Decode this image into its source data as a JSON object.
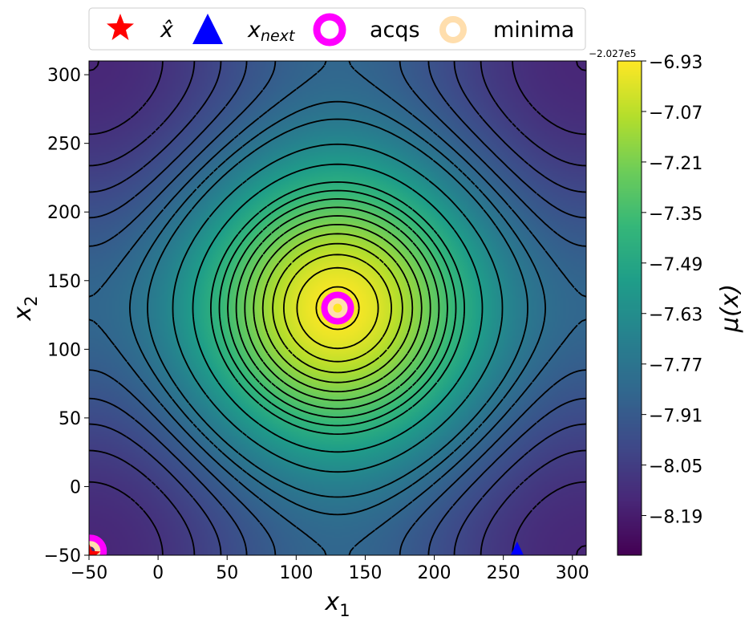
{
  "chart_data": {
    "type": "heatmap",
    "subtype": "filled-contour with dashed contour lines and colorbar",
    "colormap": "viridis",
    "x": {
      "label": "x",
      "label_subscript": "1",
      "lim": [
        -50,
        310
      ],
      "ticks": [
        -50,
        0,
        50,
        100,
        150,
        200,
        250,
        300
      ],
      "tick_labels": [
        "−50",
        "0",
        "50",
        "100",
        "150",
        "200",
        "250",
        "300"
      ]
    },
    "y": {
      "label": "x",
      "label_subscript": "2",
      "lim": [
        -50,
        310
      ],
      "ticks": [
        -50,
        0,
        50,
        100,
        150,
        200,
        250,
        300
      ],
      "tick_labels": [
        "−50",
        "0",
        "50",
        "100",
        "150",
        "200",
        "250",
        "300"
      ]
    },
    "surface": {
      "max_value": -6.93,
      "max_location": [
        130,
        130
      ],
      "min_value": -8.3,
      "min_locations": [
        [
          -50,
          -50
        ],
        [
          310,
          -50
        ],
        [
          -50,
          310
        ],
        [
          310,
          310
        ]
      ],
      "period": 360,
      "contour_levels": [
        -6.95,
        -7.0,
        -7.05,
        -7.1,
        -7.15,
        -7.2,
        -7.25,
        -7.3,
        -7.35,
        -7.4,
        -7.45,
        -7.55,
        -7.65,
        -7.75,
        -7.8,
        -7.85,
        -7.9,
        -7.95,
        -8.0,
        -8.05,
        -8.1,
        -8.15,
        -8.2,
        -8.25
      ],
      "contour_style": "dashed",
      "contour_color": "#000000"
    },
    "colorbar": {
      "label": "μ(x)",
      "offset_text": "−2.027e5",
      "range": [
        -8.3,
        -6.93
      ],
      "ticks": [
        -6.93,
        -7.07,
        -7.21,
        -7.35,
        -7.49,
        -7.63,
        -7.77,
        -7.91,
        -8.05,
        -8.19
      ],
      "tick_labels": [
        "−6.93",
        "−7.07",
        "−7.21",
        "−7.35",
        "−7.49",
        "−7.63",
        "−7.77",
        "−7.91",
        "−8.05",
        "−8.19"
      ]
    },
    "legend": {
      "placement": "top-center, above plot",
      "entries": [
        {
          "key": "x_hat",
          "label": "x̂",
          "marker": "star",
          "color": "#ff0000"
        },
        {
          "key": "x_next",
          "label": "x",
          "label_subscript": "next",
          "marker": "triangle",
          "color": "#0000ff"
        },
        {
          "key": "acqs",
          "label": "acqs",
          "marker": "ring",
          "color": "#ff00ff"
        },
        {
          "key": "minima",
          "label": "minima",
          "marker": "ring",
          "color": "#ffdead"
        }
      ]
    },
    "points": {
      "x_hat": [
        [
          -50,
          -50
        ]
      ],
      "x_next": [
        [
          260,
          -50
        ]
      ],
      "acqs": [
        [
          130,
          130
        ],
        [
          -49,
          -47
        ]
      ],
      "minima": [
        [
          130,
          130
        ],
        [
          -49,
          -47
        ]
      ]
    },
    "grid": false
  }
}
